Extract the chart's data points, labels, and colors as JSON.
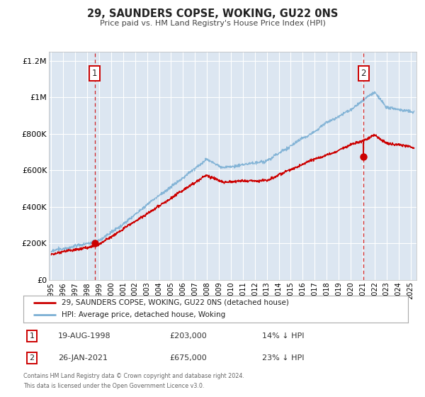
{
  "title": "29, SAUNDERS COPSE, WOKING, GU22 0NS",
  "subtitle": "Price paid vs. HM Land Registry's House Price Index (HPI)",
  "legend_label_red": "29, SAUNDERS COPSE, WOKING, GU22 0NS (detached house)",
  "legend_label_blue": "HPI: Average price, detached house, Woking",
  "annotation1_date": "19-AUG-1998",
  "annotation1_price": "£203,000",
  "annotation1_hpi": "14% ↓ HPI",
  "annotation1_year": 1998.63,
  "annotation1_value": 203000,
  "annotation2_date": "26-JAN-2021",
  "annotation2_price": "£675,000",
  "annotation2_hpi": "23% ↓ HPI",
  "annotation2_year": 2021.07,
  "annotation2_value": 675000,
  "footer1": "Contains HM Land Registry data © Crown copyright and database right 2024.",
  "footer2": "This data is licensed under the Open Government Licence v3.0.",
  "red_color": "#cc0000",
  "blue_color": "#7bafd4",
  "background_color": "#dce6f1",
  "vline_color": "#cc0000",
  "marker_color": "#cc0000",
  "ylim": [
    0,
    1250000
  ],
  "xlim_start": 1994.8,
  "xlim_end": 2025.5,
  "yticks": [
    0,
    200000,
    400000,
    600000,
    800000,
    1000000,
    1200000
  ],
  "ytick_labels": [
    "£0",
    "£200K",
    "£400K",
    "£600K",
    "£800K",
    "£1M",
    "£1.2M"
  ],
  "xticks": [
    1995,
    1996,
    1997,
    1998,
    1999,
    2000,
    2001,
    2002,
    2003,
    2004,
    2005,
    2006,
    2007,
    2008,
    2009,
    2010,
    2011,
    2012,
    2013,
    2014,
    2015,
    2016,
    2017,
    2018,
    2019,
    2020,
    2021,
    2022,
    2023,
    2024,
    2025
  ]
}
